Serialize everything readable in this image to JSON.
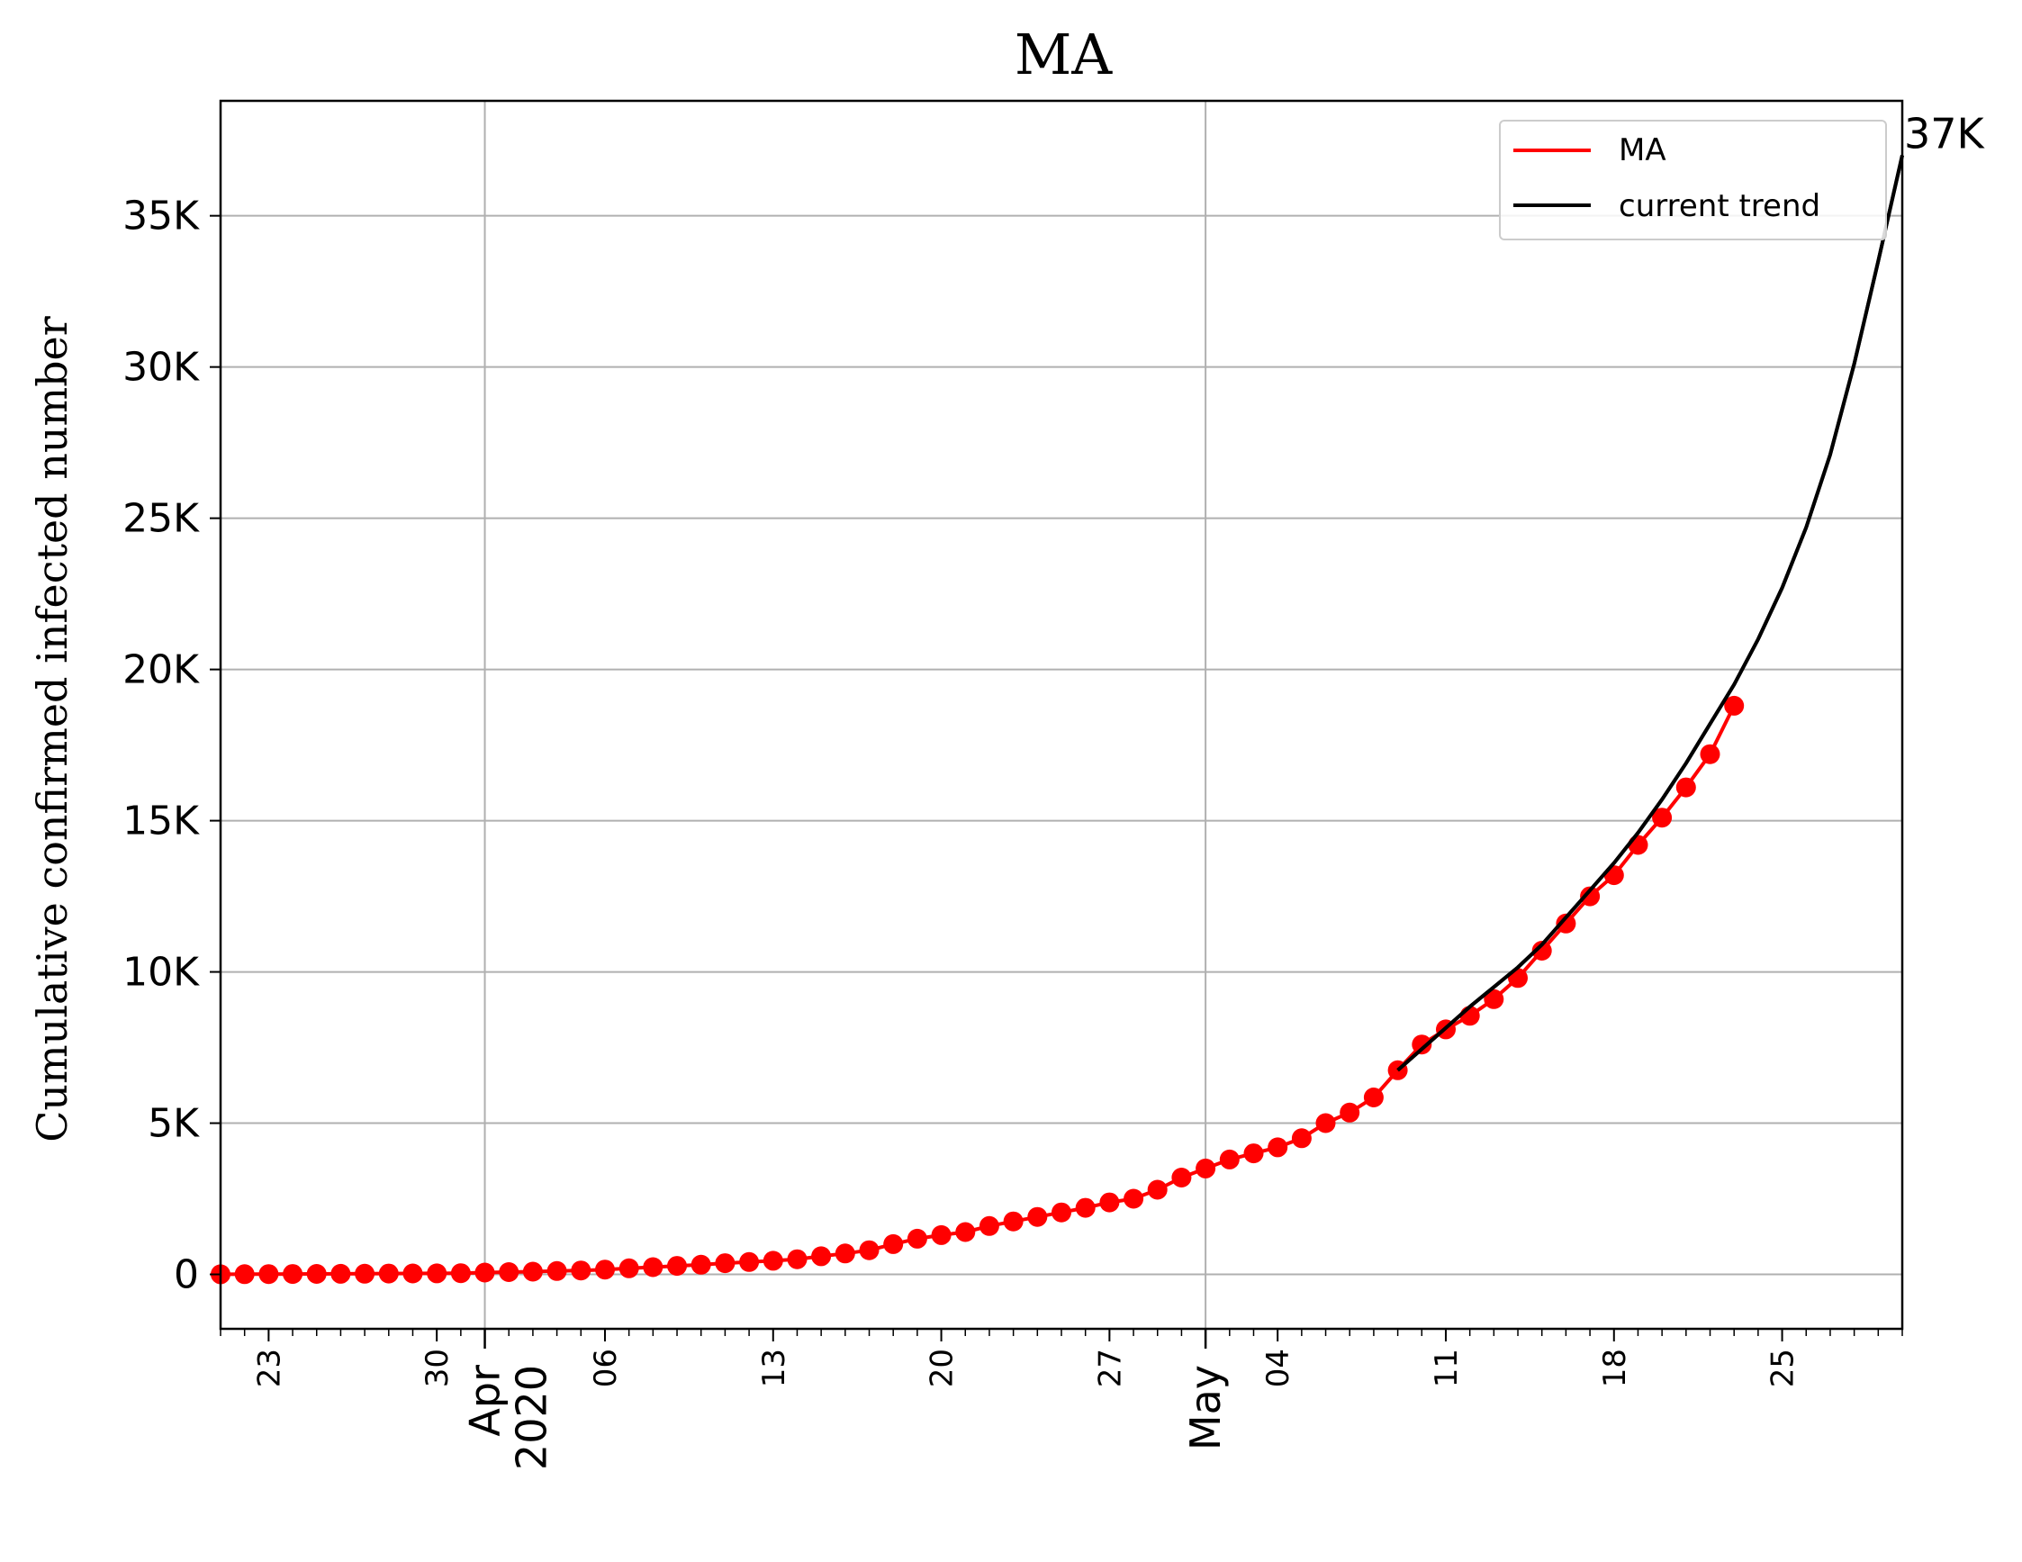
{
  "chart_data": {
    "type": "line",
    "title": "MA",
    "ylabel": "Cumulative confirmed infected number",
    "xlabel": "",
    "grid": true,
    "legend_position": "top-right",
    "x_axis": {
      "type": "date",
      "range": [
        "2020-03-21",
        "2020-05-30"
      ],
      "major_ticks": [
        {
          "date": "2020-04-01",
          "label": "Apr\n2020"
        },
        {
          "date": "2020-05-01",
          "label": "May"
        }
      ],
      "minor_ticks": [
        {
          "date": "2020-03-23",
          "label": "23"
        },
        {
          "date": "2020-03-30",
          "label": "30"
        },
        {
          "date": "2020-04-06",
          "label": "06"
        },
        {
          "date": "2020-04-13",
          "label": "13"
        },
        {
          "date": "2020-04-20",
          "label": "20"
        },
        {
          "date": "2020-04-27",
          "label": "27"
        },
        {
          "date": "2020-05-04",
          "label": "04"
        },
        {
          "date": "2020-05-11",
          "label": "11"
        },
        {
          "date": "2020-05-18",
          "label": "18"
        },
        {
          "date": "2020-05-25",
          "label": "25"
        }
      ]
    },
    "y_axis": {
      "range": [
        -1800,
        38800
      ],
      "ticks": [
        {
          "value": 0,
          "label": "0"
        },
        {
          "value": 5000,
          "label": "5K"
        },
        {
          "value": 10000,
          "label": "10K"
        },
        {
          "value": 15000,
          "label": "15K"
        },
        {
          "value": 20000,
          "label": "20K"
        },
        {
          "value": 25000,
          "label": "25K"
        },
        {
          "value": 30000,
          "label": "30K"
        },
        {
          "value": 35000,
          "label": "35K"
        }
      ]
    },
    "series": [
      {
        "name": "MA",
        "color": "#ff0000",
        "style": "line-with-markers",
        "points": [
          [
            "2020-03-21",
            5
          ],
          [
            "2020-03-22",
            8
          ],
          [
            "2020-03-23",
            10
          ],
          [
            "2020-03-24",
            12
          ],
          [
            "2020-03-25",
            15
          ],
          [
            "2020-03-26",
            18
          ],
          [
            "2020-03-27",
            22
          ],
          [
            "2020-03-28",
            27
          ],
          [
            "2020-03-29",
            30
          ],
          [
            "2020-03-30",
            35
          ],
          [
            "2020-03-31",
            40
          ],
          [
            "2020-04-01",
            60
          ],
          [
            "2020-04-02",
            75
          ],
          [
            "2020-04-03",
            90
          ],
          [
            "2020-04-04",
            110
          ],
          [
            "2020-04-05",
            130
          ],
          [
            "2020-04-06",
            160
          ],
          [
            "2020-04-07",
            200
          ],
          [
            "2020-04-08",
            240
          ],
          [
            "2020-04-09",
            280
          ],
          [
            "2020-04-10",
            320
          ],
          [
            "2020-04-11",
            370
          ],
          [
            "2020-04-12",
            410
          ],
          [
            "2020-04-13",
            450
          ],
          [
            "2020-04-14",
            500
          ],
          [
            "2020-04-15",
            600
          ],
          [
            "2020-04-16",
            690
          ],
          [
            "2020-04-17",
            800
          ],
          [
            "2020-04-18",
            1000
          ],
          [
            "2020-04-19",
            1180
          ],
          [
            "2020-04-20",
            1300
          ],
          [
            "2020-04-21",
            1400
          ],
          [
            "2020-04-22",
            1600
          ],
          [
            "2020-04-23",
            1750
          ],
          [
            "2020-04-24",
            1900
          ],
          [
            "2020-04-25",
            2050
          ],
          [
            "2020-04-26",
            2200
          ],
          [
            "2020-04-27",
            2380
          ],
          [
            "2020-04-28",
            2500
          ],
          [
            "2020-04-29",
            2800
          ],
          [
            "2020-04-30",
            3200
          ],
          [
            "2020-05-01",
            3500
          ],
          [
            "2020-05-02",
            3800
          ],
          [
            "2020-05-03",
            4000
          ],
          [
            "2020-05-04",
            4200
          ],
          [
            "2020-05-05",
            4500
          ],
          [
            "2020-05-06",
            5000
          ],
          [
            "2020-05-07",
            5350
          ],
          [
            "2020-05-08",
            5850
          ],
          [
            "2020-05-09",
            6750
          ],
          [
            "2020-05-10",
            7600
          ],
          [
            "2020-05-11",
            8100
          ],
          [
            "2020-05-12",
            8550
          ],
          [
            "2020-05-13",
            9100
          ],
          [
            "2020-05-14",
            9800
          ],
          [
            "2020-05-15",
            10700
          ],
          [
            "2020-05-16",
            11600
          ],
          [
            "2020-05-17",
            12500
          ],
          [
            "2020-05-18",
            13200
          ],
          [
            "2020-05-19",
            14200
          ],
          [
            "2020-05-20",
            15100
          ],
          [
            "2020-05-21",
            16100
          ],
          [
            "2020-05-22",
            17200
          ],
          [
            "2020-05-23",
            18800
          ]
        ]
      },
      {
        "name": "current trend",
        "color": "#000000",
        "style": "line",
        "points": [
          [
            "2020-05-09",
            6750
          ],
          [
            "2020-05-10",
            7450
          ],
          [
            "2020-05-11",
            8150
          ],
          [
            "2020-05-12",
            8850
          ],
          [
            "2020-05-13",
            9500
          ],
          [
            "2020-05-14",
            10150
          ],
          [
            "2020-05-15",
            10900
          ],
          [
            "2020-05-16",
            11800
          ],
          [
            "2020-05-17",
            12700
          ],
          [
            "2020-05-18",
            13600
          ],
          [
            "2020-05-19",
            14600
          ],
          [
            "2020-05-20",
            15700
          ],
          [
            "2020-05-21",
            16900
          ],
          [
            "2020-05-22",
            18200
          ],
          [
            "2020-05-23",
            19500
          ],
          [
            "2020-05-24",
            21000
          ],
          [
            "2020-05-25",
            22700
          ],
          [
            "2020-05-26",
            24700
          ],
          [
            "2020-05-27",
            27100
          ],
          [
            "2020-05-28",
            30100
          ],
          [
            "2020-05-29",
            33500
          ],
          [
            "2020-05-30",
            37000
          ]
        ]
      }
    ],
    "annotations": [
      {
        "text": "37K",
        "x": "2020-05-30",
        "y": 37000
      }
    ]
  }
}
